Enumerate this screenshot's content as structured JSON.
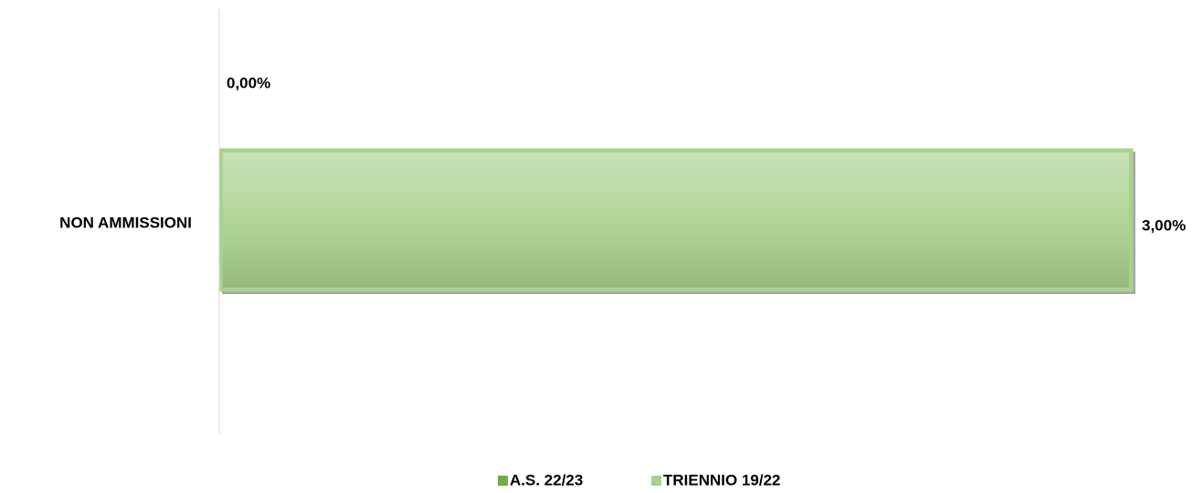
{
  "chart_data": {
    "type": "bar",
    "orientation": "horizontal",
    "categories": [
      "NON AMMISSIONI"
    ],
    "series": [
      {
        "name": "A.S. 22/23",
        "color": "#70ad47",
        "values": [
          0
        ],
        "value_labels": [
          "0,00%"
        ]
      },
      {
        "name": "TRIENNIO 19/22",
        "color": "#a9d18e",
        "values": [
          3
        ],
        "value_labels": [
          "3,00%"
        ]
      }
    ],
    "xlim": [
      0,
      3
    ],
    "legend": "bottom"
  }
}
